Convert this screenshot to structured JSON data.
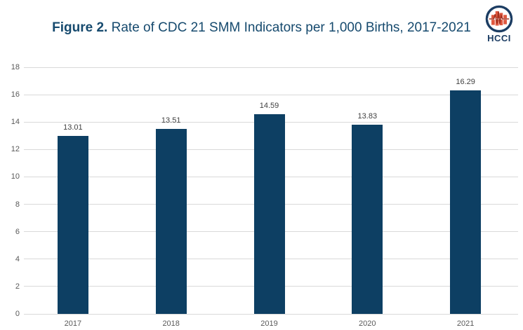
{
  "header": {
    "title_prefix": "Figure 2.",
    "title_rest": " Rate of CDC 21 SMM Indicators per 1,000 Births, 2017-2021",
    "logo_text": "HCCI"
  },
  "colors": {
    "bar": "#0d3f63",
    "title": "#164a6e",
    "axis_text": "#595959",
    "grid": "#d9d9d9",
    "data_label": "#404040",
    "logo_orange": "#e0583f",
    "logo_navy": "#1c3d63",
    "logo_pulse": "#a0301f",
    "bg": "#ffffff"
  },
  "chart_data": {
    "type": "bar",
    "title": "Figure 2. Rate of CDC 21 SMM Indicators per 1,000 Births, 2017-2021",
    "categories": [
      "2017",
      "2018",
      "2019",
      "2020",
      "2021"
    ],
    "values": [
      13.01,
      13.51,
      14.59,
      13.83,
      16.29
    ],
    "data_labels": [
      "13.01",
      "13.51",
      "14.59",
      "13.83",
      "16.29"
    ],
    "xlabel": "",
    "ylabel": "",
    "ylim": [
      0,
      18
    ],
    "yticks": [
      0,
      2,
      4,
      6,
      8,
      10,
      12,
      14,
      16,
      18
    ],
    "grid": true,
    "legend": false,
    "bar_color": "#0d3f63"
  }
}
